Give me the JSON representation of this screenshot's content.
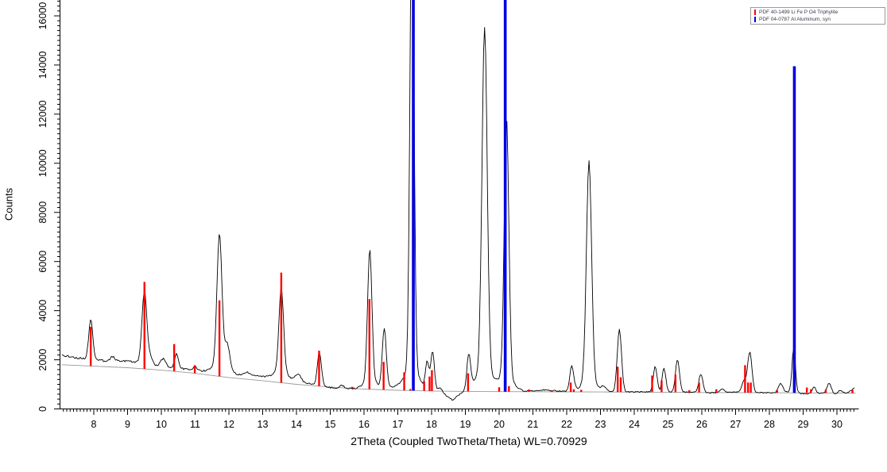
{
  "window": {
    "background": "#ffffff"
  },
  "legend": {
    "items": [
      {
        "label": "PDF 40-1499 Li Fe P O4 Triphylite",
        "color": "#ff0000"
      },
      {
        "label": "PDF 04-0787 Al Aluminum, syn",
        "color": "#0000e0"
      }
    ]
  },
  "chart_data": {
    "type": "line",
    "title": "",
    "xlabel": "2Theta (Coupled TwoTheta/Theta) WL=0.70929",
    "ylabel": "Counts",
    "xlim": [
      7.05,
      30.6
    ],
    "ylim": [
      0,
      16650
    ],
    "grid": false,
    "legend_position": "top-right",
    "x_major_ticks": [
      8,
      9,
      10,
      11,
      12,
      13,
      14,
      15,
      16,
      17,
      18,
      19,
      20,
      21,
      22,
      23,
      24,
      25,
      26,
      27,
      28,
      29,
      30
    ],
    "x_minor_step": 0.1,
    "y_major_ticks": [
      0,
      2000,
      4000,
      6000,
      8000,
      10000,
      12000,
      14000,
      16000
    ],
    "y_minor_step": 200,
    "series": [
      {
        "name": "measured-pattern",
        "kind": "curve",
        "color": "#000000",
        "note": "black measured XRD trace = baseline_points (linear interp) + gaussian peaks [center2theta, height_counts, fwhm] + noise",
        "baseline_points": [
          [
            7.05,
            2180
          ],
          [
            7.6,
            2060
          ],
          [
            8.3,
            1960
          ],
          [
            9.05,
            1950
          ],
          [
            9.95,
            1720
          ],
          [
            10.8,
            1620
          ],
          [
            11.35,
            1500
          ],
          [
            12.25,
            1400
          ],
          [
            12.9,
            1330
          ],
          [
            13.3,
            1280
          ],
          [
            14.25,
            1060
          ],
          [
            15.0,
            870
          ],
          [
            15.9,
            800
          ],
          [
            16.9,
            880
          ],
          [
            17.75,
            720
          ],
          [
            18.4,
            580
          ],
          [
            18.62,
            360
          ],
          [
            18.85,
            620
          ],
          [
            19.25,
            880
          ],
          [
            20.7,
            710
          ],
          [
            21.3,
            770
          ],
          [
            22.0,
            705
          ],
          [
            23.05,
            700
          ],
          [
            24.2,
            690
          ],
          [
            25.65,
            680
          ],
          [
            26.3,
            655
          ],
          [
            27.0,
            695
          ],
          [
            28.05,
            655
          ],
          [
            28.5,
            695
          ],
          [
            29.05,
            615
          ],
          [
            29.55,
            645
          ],
          [
            30.05,
            595
          ],
          [
            30.3,
            645
          ],
          [
            30.55,
            880
          ]
        ],
        "peaks": [
          [
            7.91,
            1620,
            0.14
          ],
          [
            8.56,
            160,
            0.15
          ],
          [
            9.5,
            2950,
            0.17
          ],
          [
            9.68,
            300,
            0.15
          ],
          [
            10.05,
            330,
            0.18
          ],
          [
            10.45,
            560,
            0.13
          ],
          [
            11.0,
            140,
            0.12
          ],
          [
            11.72,
            5330,
            0.17
          ],
          [
            11.72,
            350,
            0.5
          ],
          [
            11.95,
            1050,
            0.18
          ],
          [
            12.55,
            120,
            0.2
          ],
          [
            13.55,
            3400,
            0.16
          ],
          [
            13.55,
            300,
            0.45
          ],
          [
            14.05,
            300,
            0.2
          ],
          [
            14.68,
            1350,
            0.14
          ],
          [
            15.35,
            120,
            0.15
          ],
          [
            16.17,
            5320,
            0.15
          ],
          [
            16.17,
            350,
            0.45
          ],
          [
            16.6,
            2380,
            0.14
          ],
          [
            17.42,
            19500,
            0.14
          ],
          [
            17.42,
            900,
            0.5
          ],
          [
            17.87,
            1150,
            0.12
          ],
          [
            18.03,
            1660,
            0.13
          ],
          [
            18.25,
            260,
            0.15
          ],
          [
            19.1,
            1370,
            0.13
          ],
          [
            19.57,
            14000,
            0.18
          ],
          [
            19.57,
            700,
            0.55
          ],
          [
            20.22,
            10520,
            0.16
          ],
          [
            20.22,
            500,
            0.5
          ],
          [
            22.15,
            1015,
            0.14
          ],
          [
            22.66,
            8930,
            0.18
          ],
          [
            22.66,
            450,
            0.5
          ],
          [
            23.1,
            200,
            0.15
          ],
          [
            23.56,
            2530,
            0.15
          ],
          [
            24.62,
            1030,
            0.13
          ],
          [
            24.88,
            960,
            0.13
          ],
          [
            25.28,
            1320,
            0.14
          ],
          [
            25.97,
            755,
            0.14
          ],
          [
            26.6,
            150,
            0.15
          ],
          [
            27.25,
            450,
            0.15
          ],
          [
            27.42,
            1625,
            0.15
          ],
          [
            28.33,
            360,
            0.15
          ],
          [
            28.72,
            1810,
            0.12
          ],
          [
            29.32,
            280,
            0.12
          ],
          [
            29.77,
            435,
            0.15
          ],
          [
            30.1,
            150,
            0.15
          ]
        ]
      },
      {
        "name": "background-curve",
        "kind": "curve",
        "color": "#9a9a9a",
        "points": [
          [
            7.05,
            1800
          ],
          [
            8,
            1740
          ],
          [
            9,
            1680
          ],
          [
            10,
            1580
          ],
          [
            11,
            1450
          ],
          [
            12,
            1280
          ],
          [
            13,
            1150
          ],
          [
            14,
            1000
          ],
          [
            15,
            890
          ],
          [
            16,
            810
          ],
          [
            17,
            760
          ],
          [
            18,
            730
          ],
          [
            19,
            715
          ],
          [
            20,
            705
          ],
          [
            21,
            700
          ],
          [
            22,
            695
          ],
          [
            23,
            690
          ],
          [
            24,
            685
          ],
          [
            25,
            680
          ],
          [
            26,
            670
          ],
          [
            27,
            665
          ],
          [
            28,
            658
          ],
          [
            29,
            652
          ],
          [
            30,
            648
          ],
          [
            30.55,
            645
          ]
        ]
      },
      {
        "name": "pdf-40-1499-lifepo4-triphylite-sticks",
        "kind": "sticks",
        "color": "#ff0000",
        "note": "sticks rise from background curve; values are [2theta, top_counts]",
        "sticks": [
          [
            7.91,
            3340
          ],
          [
            9.5,
            5170
          ],
          [
            10.38,
            2640
          ],
          [
            10.99,
            1780
          ],
          [
            11.72,
            4420
          ],
          [
            13.55,
            5550
          ],
          [
            14.67,
            2370
          ],
          [
            15.65,
            900
          ],
          [
            16.16,
            4470
          ],
          [
            16.58,
            1915
          ],
          [
            17.19,
            1490
          ],
          [
            17.37,
            810
          ],
          [
            17.78,
            1130
          ],
          [
            17.94,
            1320
          ],
          [
            18.01,
            1580
          ],
          [
            19.08,
            1450
          ],
          [
            20.0,
            880
          ],
          [
            20.29,
            930
          ],
          [
            20.88,
            790
          ],
          [
            21.55,
            760
          ],
          [
            22.12,
            1075
          ],
          [
            22.21,
            800
          ],
          [
            22.43,
            780
          ],
          [
            23.51,
            1720
          ],
          [
            23.6,
            1290
          ],
          [
            24.53,
            1360
          ],
          [
            24.81,
            1160
          ],
          [
            25.22,
            1400
          ],
          [
            25.63,
            760
          ],
          [
            25.92,
            1075
          ],
          [
            26.43,
            800
          ],
          [
            27.28,
            1780
          ],
          [
            27.37,
            1075
          ],
          [
            27.45,
            1075
          ],
          [
            28.23,
            760
          ],
          [
            29.11,
            870
          ],
          [
            29.23,
            800
          ],
          [
            29.67,
            790
          ],
          [
            30.46,
            780
          ]
        ]
      },
      {
        "name": "pdf-04-0787-al-aluminum-sticks",
        "kind": "sticks",
        "color": "#0000e0",
        "note": "two tallest sticks are clipped at top of plot",
        "sticks": [
          [
            17.46,
            17400
          ],
          [
            20.18,
            17400
          ],
          [
            28.74,
            13950
          ]
        ]
      }
    ]
  }
}
